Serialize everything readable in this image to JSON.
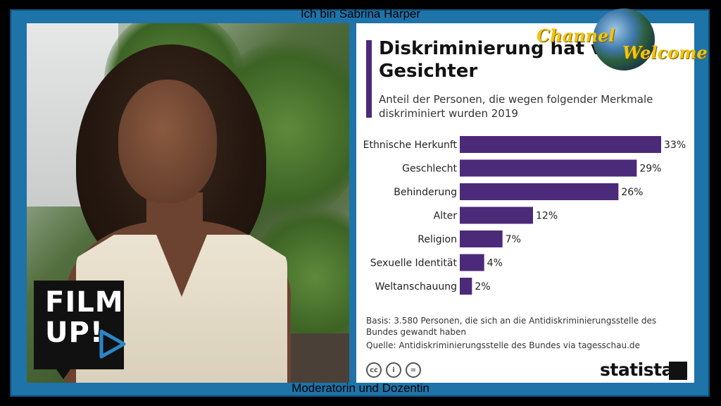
{
  "captions": {
    "top": "Ich bin Sabrina Harper",
    "bottom": "Moderatorin und Dozentin"
  },
  "overlay": {
    "channel_word": "Channel",
    "welcome_word": "Welcome",
    "film_logo_line1": "FILM",
    "film_logo_line2": "UP!"
  },
  "chart_data": {
    "type": "bar",
    "orientation": "horizontal",
    "title": "Diskriminierung hat viele Gesichter",
    "subtitle": "Anteil der Personen, die wegen folgender Merkmale diskriminiert wurden 2019",
    "categories": [
      "Ethnische Herkunft",
      "Geschlecht",
      "Behinderung",
      "Alter",
      "Religion",
      "Sexuelle Identität",
      "Weltanschauung"
    ],
    "values": [
      33,
      29,
      26,
      12,
      7,
      4,
      2
    ],
    "value_labels": [
      "33%",
      "29%",
      "26%",
      "12%",
      "7%",
      "4%",
      "2%"
    ],
    "unit": "%",
    "xlim": [
      0,
      33
    ],
    "grid": false,
    "bar_color": "#4b2a7a",
    "basis": "Basis: 3.580 Personen, die sich an die Antidiskriminierungsstelle des Bundes gewandt haben",
    "source": "Quelle: Antidiskriminierungsstelle des Bundes via tagesschau.de",
    "brand": "statista",
    "license_icons": [
      "cc-icon",
      "by-icon",
      "nd-icon"
    ]
  }
}
